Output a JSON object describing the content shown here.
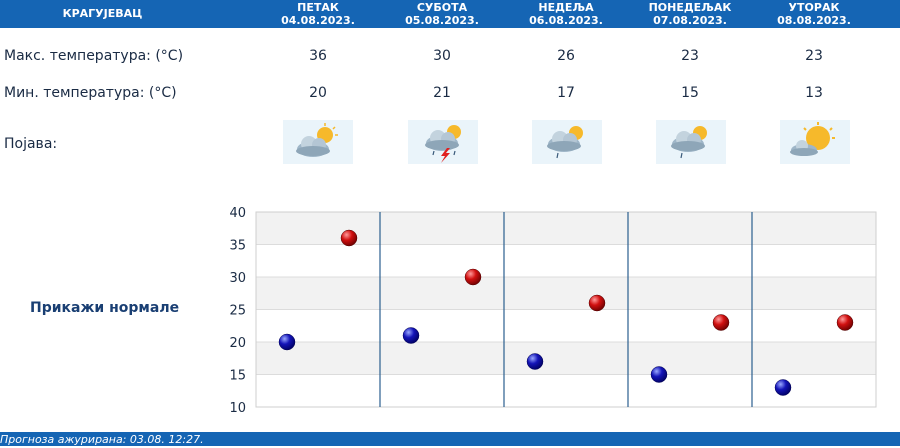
{
  "header": {
    "city": "КРАГУЈЕВАЦ",
    "days": [
      {
        "name": "ПЕТАК",
        "date": "04.08.2023."
      },
      {
        "name": "СУБОТА",
        "date": "05.08.2023."
      },
      {
        "name": "НЕДЕЉА",
        "date": "06.08.2023."
      },
      {
        "name": "ПОНЕДЕЉАК",
        "date": "07.08.2023."
      },
      {
        "name": "УТОРАК",
        "date": "08.08.2023."
      }
    ]
  },
  "rows": {
    "max_label": "Макс. температура: (°C)",
    "min_label": "Мин. температура: (°C)",
    "phenomena_label": "Појава:",
    "max_values": [
      "36",
      "30",
      "26",
      "23",
      "23"
    ],
    "min_values": [
      "20",
      "21",
      "17",
      "15",
      "13"
    ],
    "icons": [
      "partly-cloudy-icon",
      "thunderstorm-icon",
      "partly-cloudy-rain-icon",
      "partly-cloudy-rain-icon",
      "sunny-cloud-icon"
    ]
  },
  "normals_link": "Прикажи нормале",
  "chart_data": {
    "type": "scatter",
    "y_ticks": [
      "40",
      "35",
      "30",
      "25",
      "20",
      "15",
      "10"
    ],
    "ylim": [
      10,
      40
    ],
    "series": [
      {
        "values": [
          36,
          30,
          26,
          23,
          23
        ],
        "color": "#d11010"
      },
      {
        "values": [
          20,
          21,
          17,
          15,
          13
        ],
        "color": "#1414b8"
      }
    ],
    "grid": true
  },
  "footer": {
    "text": "Прогноза ажурирана:  03.08.  12:27."
  }
}
